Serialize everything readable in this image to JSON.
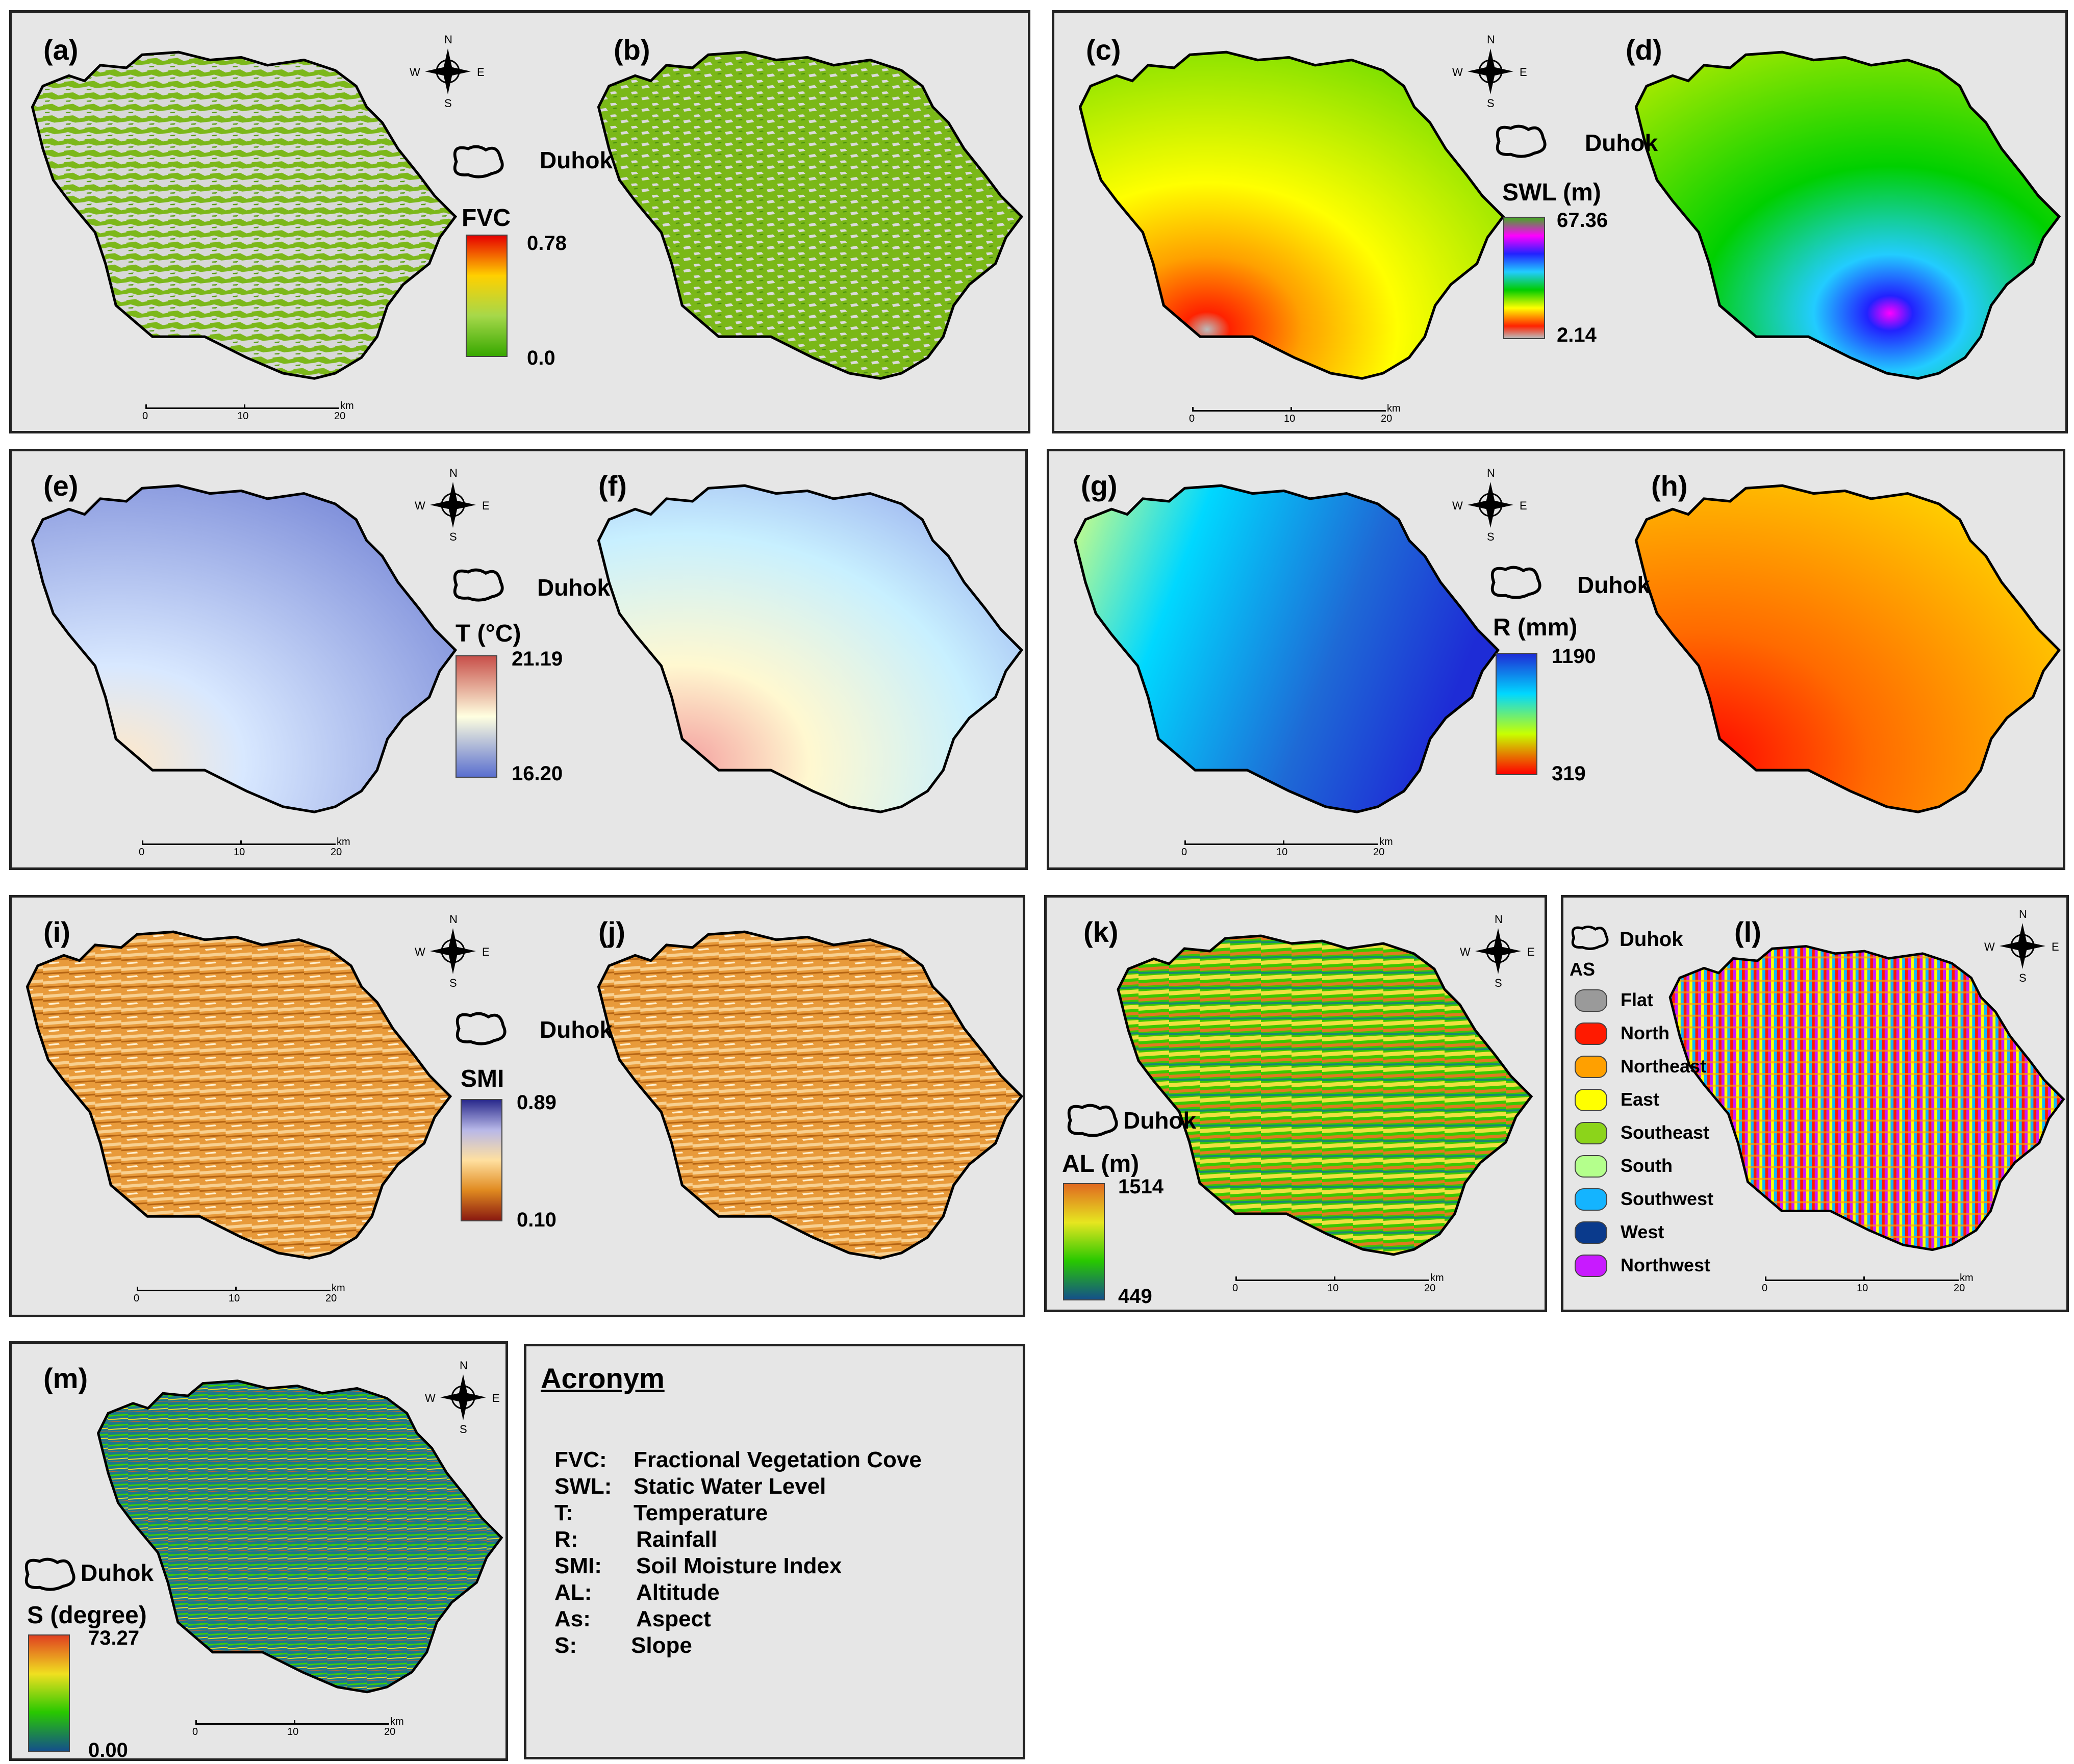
{
  "panels": {
    "a": "(a)",
    "b": "(b)",
    "c": "(c)",
    "d": "(d)",
    "e": "(e)",
    "f": "(f)",
    "g": "(g)",
    "h": "(h)",
    "i": "(i)",
    "j": "(j)",
    "k": "(k)",
    "l": "(l)",
    "m": "(m)"
  },
  "boundary_label": "Duhok",
  "compass": {
    "n": "N",
    "s": "S",
    "e": "E",
    "w": "W"
  },
  "scalebar": {
    "t0": "0",
    "t1": "10",
    "t2": "20",
    "unit": "km"
  },
  "legends": {
    "fvc": {
      "title": "FVC",
      "max": "0.78",
      "min": "0.0",
      "colors": [
        "#e60000",
        "#ffd000",
        "#a6d84a",
        "#38a800"
      ]
    },
    "swl": {
      "title": "SWL (m)",
      "max": "67.36",
      "min": "2.14",
      "colors": [
        "#44aa22",
        "#ff00ff",
        "#2222ff",
        "#22ccff",
        "#00cc00",
        "#ffff00",
        "#ff2200",
        "#bbbbbb"
      ]
    },
    "t": {
      "title": "T (°C)",
      "max": "21.19",
      "min": "16.20",
      "colors": [
        "#c8504a",
        "#ffffe0",
        "#5a6fcf"
      ]
    },
    "r": {
      "title": "R (mm)",
      "max": "1190",
      "min": "319",
      "colors": [
        "#1e2cd6",
        "#00d8ff",
        "#c8ff00",
        "#ff0000"
      ]
    },
    "smi": {
      "title": "SMI",
      "max": "0.89",
      "min": "0.10",
      "colors": [
        "#2a2a8c",
        "#b8b8e8",
        "#ffe0a0",
        "#e08a20",
        "#8a1a10"
      ]
    },
    "al": {
      "title": "AL (m)",
      "max": "1514",
      "min": "449",
      "colors": [
        "#e06a20",
        "#e6e620",
        "#28c800",
        "#14508a"
      ]
    },
    "s": {
      "title": "S (degree)",
      "max": "73.27",
      "min": "0.00",
      "colors": [
        "#e04020",
        "#f0e020",
        "#28c800",
        "#14508a"
      ]
    }
  },
  "aspect_legend": {
    "title": "AS",
    "items": [
      {
        "label": "Flat",
        "color": "#9a9a9a"
      },
      {
        "label": "North",
        "color": "#ff1a00"
      },
      {
        "label": "Northeast",
        "color": "#ffa000"
      },
      {
        "label": "East",
        "color": "#ffff00"
      },
      {
        "label": "Southeast",
        "color": "#8cd41a"
      },
      {
        "label": "South",
        "color": "#b4ff8c"
      },
      {
        "label": "Southwest",
        "color": "#14b4ff"
      },
      {
        "label": "West",
        "color": "#0a3a8c"
      },
      {
        "label": "Northwest",
        "color": "#c81aff"
      }
    ]
  },
  "acronym": {
    "title": "Acronym",
    "rows": [
      {
        "k": "FVC:",
        "v": "Fractional Vegetation Cove"
      },
      {
        "k": "SWL:",
        "v": "Static Water Level"
      },
      {
        "k": "T:",
        "v": "Temperature"
      },
      {
        "k": "R:",
        "v": "Rainfall"
      },
      {
        "k": "SMI:",
        "v": "Soil Moisture Index"
      },
      {
        "k": "AL:",
        "v": "Altitude"
      },
      {
        "k": "As:",
        "v": "Aspect"
      },
      {
        "k": "S:",
        "v": "Slope"
      }
    ]
  }
}
